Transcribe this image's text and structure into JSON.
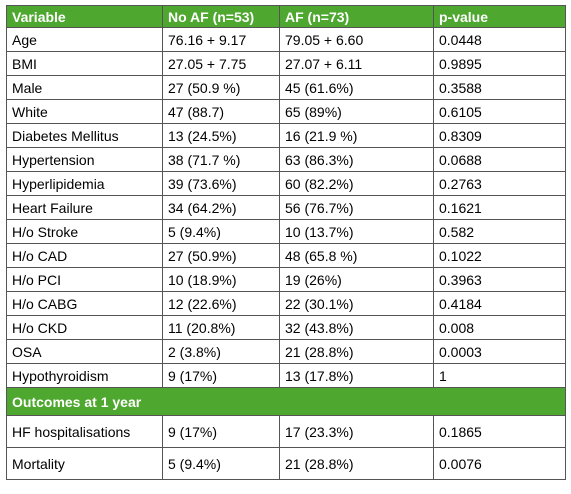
{
  "table": {
    "headers": [
      "Variable",
      "No AF (n=53)",
      "AF (n=73)",
      "p-value"
    ],
    "rows": [
      [
        "Age",
        "76.16 + 9.17",
        "79.05 + 6.60",
        "0.0448"
      ],
      [
        "BMI",
        "27.05 + 7.75",
        "27.07 + 6.11",
        "0.9895"
      ],
      [
        "Male",
        "27 (50.9 %)",
        "45 (61.6%)",
        "0.3588"
      ],
      [
        "White",
        "47 (88.7)",
        "65 (89%)",
        "0.6105"
      ],
      [
        "Diabetes Mellitus",
        "13 (24.5%)",
        "16 (21.9 %)",
        "0.8309"
      ],
      [
        "Hypertension",
        "38 (71.7 %)",
        "63 (86.3%)",
        "0.0688"
      ],
      [
        "Hyperlipidemia",
        "39 (73.6%)",
        "60 (82.2%)",
        "0.2763"
      ],
      [
        "Heart Failure",
        "34 (64.2%)",
        "56 (76.7%)",
        "0.1621"
      ],
      [
        "H/o Stroke",
        "5 (9.4%)",
        "10 (13.7%)",
        "0.582"
      ],
      [
        "H/o CAD",
        "27 (50.9%)",
        "48 (65.8 %)",
        "0.1022"
      ],
      [
        "H/o PCI",
        "10 (18.9%)",
        "19 (26%)",
        "0.3963"
      ],
      [
        "H/o CABG",
        "12 (22.6%)",
        "22 (30.1%)",
        "0.4184"
      ],
      [
        "H/o CKD",
        "11 (20.8%)",
        "32 (43.8%)",
        "0.008"
      ],
      [
        "OSA",
        "2 (3.8%)",
        "21 (28.8%)",
        "0.0003"
      ],
      [
        "Hypothyroidism",
        "9 (17%)",
        "13 (17.8%)",
        "1"
      ]
    ],
    "section_title": "Outcomes at 1 year",
    "outcome_rows": [
      [
        "HF hospitalisations",
        "9 (17%)",
        "17 (23.3%)",
        "0.1865"
      ],
      [
        "Mortality",
        "5 (9.4%)",
        "21 (28.8%)",
        "0.0076"
      ]
    ],
    "colors": {
      "header_bg": "#4ea72e",
      "header_text": "#ffffff",
      "border": "#555555"
    }
  }
}
